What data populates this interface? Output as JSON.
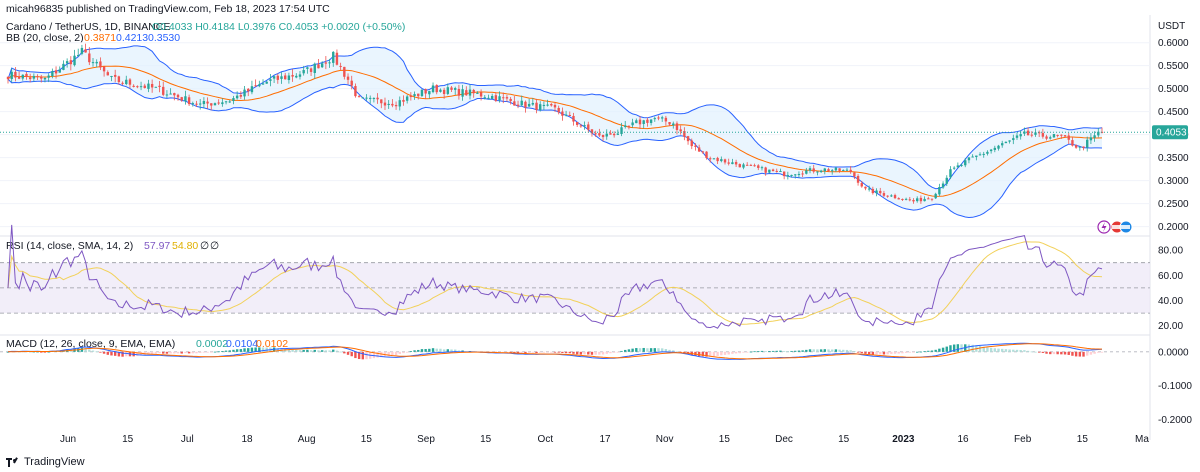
{
  "header": {
    "published": "micah96835 published on TradingView.com, Feb 18, 2023 17:54 UTC",
    "symbol": "Cardano / TetherUS, 1D, BINANCE",
    "ohlc": "O0.4033  H0.4184  L0.3976  C0.4053  +0.0020 (+0.50%)",
    "bb_label": "BB (20, close, 2)",
    "bb_values": [
      "0.3871",
      "0.4213",
      "0.3530"
    ],
    "currency": "USDT"
  },
  "rsi_header": {
    "label": "RSI (14, close, SMA, 14, 2)",
    "values": [
      "57.97",
      "54.80",
      "∅",
      "∅"
    ]
  },
  "macd_header": {
    "label": "MACD (12, 26, close, 9, EMA, EMA)",
    "values": [
      "0.0002",
      "0.0104",
      "0.0102"
    ]
  },
  "footer": {
    "brand": "TradingView"
  },
  "colors": {
    "up": "#26a69a",
    "down": "#ef5350",
    "bb_band": "#2962ff",
    "bb_fill": "#e3f2fd",
    "bb_basis": "#ff6d00",
    "rsi": "#7e57c2",
    "rsi_sma": "#f2d15a",
    "rsi_fill": "#ede7f6",
    "macd": "#2962ff",
    "signal": "#ff6d00",
    "price_tag": "#26a69a"
  },
  "chart_data": [
    {
      "type": "candlestick",
      "title": "Cardano / TetherUS, 1D, BINANCE",
      "x_axis_labels": [
        "Jun",
        "15",
        "Jul",
        "18",
        "Aug",
        "15",
        "Sep",
        "15",
        "Oct",
        "17",
        "Nov",
        "15",
        "Dec",
        "15",
        "2023",
        "16",
        "Feb",
        "15",
        "Ma"
      ],
      "ylim": [
        0.21,
        0.645
      ],
      "y_ticks": [
        "0.6000",
        "0.5500",
        "0.5000",
        "0.4500",
        "0.4000",
        "0.3500",
        "0.3000",
        "0.2500",
        "0.2000"
      ],
      "last_price": "0.4053",
      "close_keypoints": [
        [
          0,
          0.53
        ],
        [
          10,
          0.52
        ],
        [
          20,
          0.58
        ],
        [
          28,
          0.52
        ],
        [
          40,
          0.5
        ],
        [
          52,
          0.465
        ],
        [
          60,
          0.475
        ],
        [
          70,
          0.515
        ],
        [
          80,
          0.535
        ],
        [
          88,
          0.57
        ],
        [
          92,
          0.52
        ],
        [
          95,
          0.475
        ],
        [
          105,
          0.47
        ],
        [
          115,
          0.5
        ],
        [
          120,
          0.495
        ],
        [
          130,
          0.485
        ],
        [
          140,
          0.465
        ],
        [
          148,
          0.455
        ],
        [
          155,
          0.42
        ],
        [
          160,
          0.395
        ],
        [
          165,
          0.405
        ],
        [
          170,
          0.425
        ],
        [
          175,
          0.435
        ],
        [
          180,
          0.425
        ],
        [
          185,
          0.375
        ],
        [
          190,
          0.35
        ],
        [
          200,
          0.33
        ],
        [
          210,
          0.315
        ],
        [
          220,
          0.325
        ],
        [
          228,
          0.32
        ],
        [
          232,
          0.28
        ],
        [
          240,
          0.265
        ],
        [
          245,
          0.255
        ],
        [
          250,
          0.265
        ],
        [
          255,
          0.32
        ],
        [
          260,
          0.345
        ],
        [
          268,
          0.375
        ],
        [
          275,
          0.4
        ],
        [
          285,
          0.395
        ],
        [
          290,
          0.37
        ],
        [
          296,
          0.41
        ]
      ],
      "bollinger": {
        "period": 20,
        "mult": 2,
        "last": {
          "basis": "0.3871",
          "upper": "0.4213",
          "lower": "0.3530"
        }
      }
    },
    {
      "type": "line",
      "title": "RSI (14, close, SMA, 14, 2)",
      "ylim": [
        15,
        88
      ],
      "y_ticks": [
        "80.00",
        "60.00",
        "40.00",
        "20.00"
      ],
      "bands": {
        "upper": 70,
        "middle": 50,
        "lower": 30
      },
      "series": [
        {
          "name": "RSI",
          "last": 57.97
        },
        {
          "name": "SMA",
          "last": 54.8
        }
      ]
    },
    {
      "type": "line",
      "title": "MACD (12, 26, close, 9, EMA, EMA)",
      "ylim": [
        -0.255,
        0.035
      ],
      "y_ticks": [
        "0.0000",
        "-0.1000",
        "-0.2000"
      ],
      "series": [
        {
          "name": "Histogram",
          "last": 0.0002
        },
        {
          "name": "MACD",
          "last": 0.0104
        },
        {
          "name": "Signal",
          "last": 0.0102
        }
      ]
    }
  ]
}
